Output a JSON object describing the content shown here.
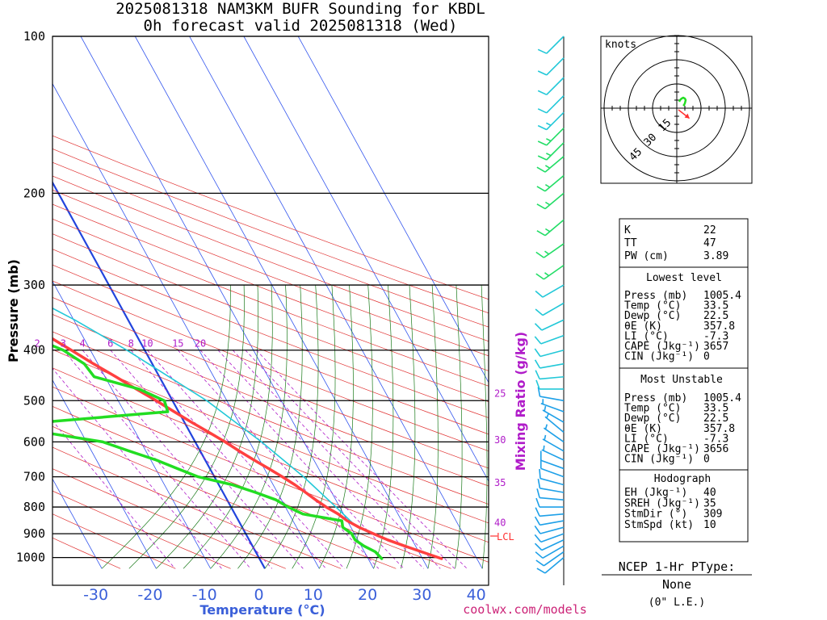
{
  "header": {
    "title_line1": "2025081318 NAM3KM BUFR Sounding for KBDL",
    "title_line2": "0h forecast valid 2025081318 (Wed)"
  },
  "credit": "coolwx.com/models",
  "colors": {
    "temperature": "#ff4040",
    "dewpoint": "#22dd22",
    "parcel": "#22c8d8",
    "isotherm": "#3355ee",
    "dry_adiabat": "#e03030",
    "moist_adiabat": "#1a7a1a",
    "mixing_ratio": "#b01cc9",
    "zero_isotherm": "#2244dd",
    "hodograph_trace": "#22dd22",
    "storm_motion": "#ff3030"
  },
  "chart_data": {
    "type": "line",
    "title": "2025081318 NAM3KM BUFR Sounding for KBDL",
    "subtitle": "0h forecast valid 2025081318 (Wed)",
    "xlabel": "Temperature (°C)",
    "ylabel": "Pressure (mb)",
    "secondary_label": "Mixing Ratio (g/kg)",
    "x_ticks": [
      "-30",
      "-20",
      "-10",
      "0",
      "10",
      "20",
      "30",
      "40"
    ],
    "x_tick_values": [
      -30,
      -20,
      -10,
      0,
      10,
      20,
      30,
      40
    ],
    "y_ticks": [
      "100",
      "200",
      "300",
      "400",
      "500",
      "600",
      "700",
      "800",
      "900",
      "1000"
    ],
    "y_tick_values": [
      100,
      200,
      300,
      400,
      500,
      600,
      700,
      800,
      900,
      1000
    ],
    "xlim": [
      -38,
      42
    ],
    "ylim": [
      1050,
      100
    ],
    "y_scale": "log",
    "skew": true,
    "mixing_ratio_labels": [
      "1",
      "2",
      "3",
      "4",
      "6",
      "8",
      "10",
      "15",
      "20",
      "25",
      "30",
      "35",
      "40"
    ],
    "mixing_ratio_values": [
      1,
      2,
      3,
      4,
      6,
      8,
      10,
      15,
      20,
      25,
      30,
      35,
      40
    ],
    "series": [
      {
        "name": "Temperature",
        "points": [
          [
            1005,
            33.5
          ],
          [
            975,
            30.5
          ],
          [
            950,
            28
          ],
          [
            925,
            25.5
          ],
          [
            900,
            23.5
          ],
          [
            875,
            21.5
          ],
          [
            850,
            20
          ],
          [
            825,
            19
          ],
          [
            800,
            17.5
          ],
          [
            775,
            16.3
          ],
          [
            750,
            15.2
          ],
          [
            725,
            14
          ],
          [
            700,
            12.5
          ],
          [
            675,
            10.8
          ],
          [
            650,
            9
          ],
          [
            625,
            7.2
          ],
          [
            600,
            5.5
          ],
          [
            575,
            3.5
          ],
          [
            550,
            1.3
          ],
          [
            525,
            -0.8
          ],
          [
            500,
            -3
          ],
          [
            475,
            -5.5
          ],
          [
            450,
            -8
          ],
          [
            425,
            -10.8
          ],
          [
            400,
            -13.5
          ],
          [
            375,
            -16.5
          ],
          [
            350,
            -20
          ],
          [
            325,
            -23.5
          ],
          [
            300,
            -27.5
          ],
          [
            275,
            -32
          ],
          [
            250,
            -36.5
          ],
          [
            225,
            -42
          ],
          [
            200,
            -47.5
          ],
          [
            180,
            -52.5
          ],
          [
            160,
            -57.5
          ],
          [
            150,
            -58.5
          ],
          [
            140,
            -58
          ],
          [
            130,
            -57
          ],
          [
            120,
            -57
          ],
          [
            110,
            -56
          ],
          [
            100,
            -54
          ]
        ]
      },
      {
        "name": "Dewpoint",
        "points": [
          [
            1005,
            22.5
          ],
          [
            975,
            22
          ],
          [
            950,
            20.5
          ],
          [
            925,
            19.5
          ],
          [
            900,
            19.5
          ],
          [
            875,
            18.5
          ],
          [
            850,
            19
          ],
          [
            825,
            12.5
          ],
          [
            800,
            10.5
          ],
          [
            775,
            9
          ],
          [
            750,
            6
          ],
          [
            725,
            2.5
          ],
          [
            700,
            -3
          ],
          [
            675,
            -6
          ],
          [
            650,
            -9
          ],
          [
            625,
            -13
          ],
          [
            600,
            -17
          ],
          [
            575,
            -27
          ],
          [
            560,
            -31
          ],
          [
            550,
            -26
          ],
          [
            525,
            -2
          ],
          [
            500,
            -1.5
          ],
          [
            475,
            -5
          ],
          [
            450,
            -12
          ],
          [
            425,
            -12.5
          ],
          [
            400,
            -15
          ],
          [
            375,
            -20
          ],
          [
            350,
            -26
          ],
          [
            325,
            -33
          ],
          [
            300,
            -38
          ],
          [
            275,
            -42
          ],
          [
            250,
            -46
          ],
          [
            225,
            -52
          ],
          [
            200,
            -56
          ],
          [
            185,
            -63
          ],
          [
            170,
            -68
          ],
          [
            160,
            -72
          ],
          [
            150,
            -73
          ],
          [
            140,
            -72
          ]
        ]
      },
      {
        "name": "Parcel",
        "points": [
          [
            1005,
            33.5
          ],
          [
            950,
            28
          ],
          [
            900,
            23.4
          ],
          [
            860,
            20.8
          ],
          [
            800,
            19.3
          ],
          [
            700,
            16.4
          ],
          [
            600,
            12.2
          ],
          [
            500,
            6.3
          ],
          [
            400,
            -3.3
          ],
          [
            350,
            -9.8
          ],
          [
            300,
            -18.5
          ],
          [
            250,
            -30
          ],
          [
            200,
            -44
          ],
          [
            150,
            -62
          ],
          [
            110,
            -79
          ]
        ]
      }
    ],
    "lcl_label": "LCL",
    "lcl_pressure": 860,
    "wind_barbs": [
      {
        "p": 1000,
        "dir": 230,
        "kt": 10
      },
      {
        "p": 975,
        "dir": 235,
        "kt": 10
      },
      {
        "p": 950,
        "dir": 240,
        "kt": 10
      },
      {
        "p": 925,
        "dir": 245,
        "kt": 10
      },
      {
        "p": 900,
        "dir": 250,
        "kt": 10
      },
      {
        "p": 875,
        "dir": 255,
        "kt": 10
      },
      {
        "p": 850,
        "dir": 260,
        "kt": 10
      },
      {
        "p": 825,
        "dir": 265,
        "kt": 10
      },
      {
        "p": 800,
        "dir": 270,
        "kt": 10
      },
      {
        "p": 775,
        "dir": 275,
        "kt": 10
      },
      {
        "p": 750,
        "dir": 280,
        "kt": 10
      },
      {
        "p": 725,
        "dir": 285,
        "kt": 10
      },
      {
        "p": 700,
        "dir": 290,
        "kt": 10
      },
      {
        "p": 675,
        "dir": 290,
        "kt": 10
      },
      {
        "p": 650,
        "dir": 295,
        "kt": 5
      },
      {
        "p": 625,
        "dir": 300,
        "kt": 5
      },
      {
        "p": 600,
        "dir": 305,
        "kt": 5
      },
      {
        "p": 575,
        "dir": 310,
        "kt": 5
      },
      {
        "p": 550,
        "dir": 300,
        "kt": 5
      },
      {
        "p": 525,
        "dir": 290,
        "kt": 5
      },
      {
        "p": 500,
        "dir": 280,
        "kt": 10
      },
      {
        "p": 475,
        "dir": 270,
        "kt": 10
      },
      {
        "p": 450,
        "dir": 265,
        "kt": 10
      },
      {
        "p": 425,
        "dir": 260,
        "kt": 10
      },
      {
        "p": 400,
        "dir": 255,
        "kt": 10
      },
      {
        "p": 375,
        "dir": 250,
        "kt": 10
      },
      {
        "p": 350,
        "dir": 245,
        "kt": 10
      },
      {
        "p": 325,
        "dir": 240,
        "kt": 10
      },
      {
        "p": 300,
        "dir": 240,
        "kt": 10
      },
      {
        "p": 275,
        "dir": 235,
        "kt": 15
      },
      {
        "p": 250,
        "dir": 235,
        "kt": 15
      },
      {
        "p": 225,
        "dir": 230,
        "kt": 15
      },
      {
        "p": 200,
        "dir": 230,
        "kt": 15
      },
      {
        "p": 185,
        "dir": 230,
        "kt": 15
      },
      {
        "p": 170,
        "dir": 230,
        "kt": 15
      },
      {
        "p": 160,
        "dir": 225,
        "kt": 15
      },
      {
        "p": 150,
        "dir": 225,
        "kt": 15
      },
      {
        "p": 140,
        "dir": 225,
        "kt": 15
      },
      {
        "p": 130,
        "dir": 225,
        "kt": 10
      },
      {
        "p": 120,
        "dir": 225,
        "kt": 10
      },
      {
        "p": 110,
        "dir": 225,
        "kt": 10
      },
      {
        "p": 100,
        "dir": 225,
        "kt": 10
      }
    ],
    "hodograph": {
      "units_label": "knots",
      "ring_labels": [
        "15",
        "30",
        "45"
      ],
      "ring_values": [
        15,
        30,
        45
      ],
      "trace_uv": [
        [
          1.5,
          4
        ],
        [
          2,
          5
        ],
        [
          3,
          6
        ],
        [
          4,
          6.5
        ],
        [
          5,
          6
        ],
        [
          5.5,
          5
        ],
        [
          5,
          3
        ],
        [
          4.5,
          2
        ],
        [
          4,
          1.5
        ]
      ],
      "storm_motion_uv": [
        7.8,
        -6.3
      ]
    }
  },
  "indices": {
    "k_label": "K",
    "k_value": "22",
    "tt_label": "TT",
    "tt_value": "47",
    "pw_label": "PW (cm)",
    "pw_value": "3.89"
  },
  "lowest_level": {
    "header": "Lowest level",
    "rows": [
      {
        "label": "Press (mb)",
        "value": "1005.4"
      },
      {
        "label": "Temp (°C)",
        "value": "33.5"
      },
      {
        "label": "Dewp (°C)",
        "value": "22.5"
      },
      {
        "label": "θE (K)",
        "value": "357.8"
      },
      {
        "label": "LI (°C)",
        "value": "-7.3"
      },
      {
        "label": "CAPE (Jkg⁻¹)",
        "value": "3657"
      },
      {
        "label": "CIN (Jkg⁻¹)",
        "value": "0"
      }
    ]
  },
  "most_unstable": {
    "header": "Most Unstable",
    "rows": [
      {
        "label": "Press (mb)",
        "value": "1005.4"
      },
      {
        "label": "Temp (°C)",
        "value": "33.5"
      },
      {
        "label": "Dewp (°C)",
        "value": "22.5"
      },
      {
        "label": "θE (K)",
        "value": "357.8"
      },
      {
        "label": "LI (°C)",
        "value": "-7.3"
      },
      {
        "label": "CAPE (Jkg⁻¹)",
        "value": "3656"
      },
      {
        "label": "CIN (Jkg⁻¹)",
        "value": "0"
      }
    ]
  },
  "hodograph_table": {
    "header": "Hodograph",
    "rows": [
      {
        "label": "EH (Jkg⁻¹)",
        "value": "40"
      },
      {
        "label": "SREH (Jkg⁻¹)",
        "value": "35"
      },
      {
        "label": "StmDir (°)",
        "value": "309"
      },
      {
        "label": "StmSpd (kt)",
        "value": "10"
      }
    ]
  },
  "ptype": {
    "title": "NCEP 1-Hr PType:",
    "value": "None",
    "note": "(0\" L.E.)"
  }
}
